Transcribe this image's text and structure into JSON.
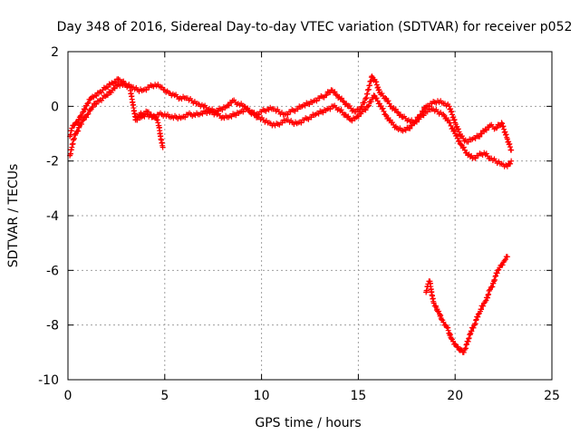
{
  "chart_data": {
    "type": "scatter",
    "title": "Day 348 of 2016, Sidereal Day-to-day VTEC variation (SDTVAR) for receiver p052",
    "xlabel": "GPS time / hours",
    "ylabel": "SDTVAR / TECUs",
    "xlim": [
      0,
      25
    ],
    "ylim": [
      -10,
      2
    ],
    "xticks": [
      0,
      5,
      10,
      15,
      20,
      25
    ],
    "yticks": [
      -10,
      -8,
      -6,
      -4,
      -2,
      0,
      2
    ],
    "grid": true,
    "marker": "+",
    "color": "#ff0000",
    "series": [
      {
        "name": "main-upper",
        "x": [
          0.1,
          0.2,
          0.3,
          0.4,
          0.5,
          0.6,
          0.8,
          1.0,
          1.2,
          1.4,
          1.6,
          1.8,
          2.0,
          2.2,
          2.4,
          2.6,
          2.8,
          3.0,
          3.3,
          3.6,
          3.9,
          4.2,
          4.5,
          4.8,
          5.0,
          5.2,
          5.5,
          5.8,
          6.1,
          6.4,
          6.7,
          7.0,
          7.3,
          7.6,
          7.9,
          8.2,
          8.5,
          8.8,
          9.1,
          9.4,
          9.7,
          10.0,
          10.3,
          10.6,
          10.9,
          11.2,
          11.5,
          11.8,
          12.1,
          12.4,
          12.7,
          13.0,
          13.3,
          13.6,
          13.9,
          14.2,
          14.5,
          14.8,
          15.1,
          15.4,
          15.7,
          15.9,
          16.1,
          16.4,
          16.7,
          17.0,
          17.3,
          17.6,
          17.9,
          18.2,
          18.5,
          18.8,
          19.1,
          19.4,
          19.7,
          20.0,
          20.3,
          20.6,
          20.9,
          21.2,
          21.5,
          21.8,
          22.1,
          22.4,
          22.7,
          22.9
        ],
        "y": [
          -1.1,
          -0.8,
          -0.7,
          -0.6,
          -0.6,
          -0.4,
          -0.2,
          0.1,
          0.3,
          0.4,
          0.5,
          0.6,
          0.7,
          0.8,
          0.9,
          1.0,
          0.9,
          0.8,
          0.7,
          0.6,
          0.6,
          0.7,
          0.8,
          0.7,
          0.6,
          0.5,
          0.4,
          0.3,
          0.3,
          0.2,
          0.1,
          0.0,
          -0.1,
          -0.2,
          -0.1,
          0.0,
          0.2,
          0.1,
          0.0,
          -0.2,
          -0.3,
          -0.2,
          -0.1,
          -0.1,
          -0.2,
          -0.3,
          -0.2,
          -0.1,
          0.0,
          0.1,
          0.2,
          0.3,
          0.4,
          0.6,
          0.4,
          0.2,
          0.0,
          -0.2,
          -0.1,
          0.3,
          1.1,
          0.9,
          0.5,
          0.3,
          0.0,
          -0.2,
          -0.4,
          -0.5,
          -0.6,
          -0.3,
          0.0,
          0.1,
          0.2,
          0.1,
          0.0,
          -0.6,
          -1.1,
          -1.3,
          -1.2,
          -1.1,
          -0.9,
          -0.7,
          -0.8,
          -0.6,
          -1.2,
          -1.6
        ]
      },
      {
        "name": "main-lower",
        "x": [
          0.1,
          0.2,
          0.3,
          0.4,
          0.5,
          0.6,
          0.8,
          1.0,
          1.2,
          1.4,
          1.6,
          1.8,
          2.0,
          2.3,
          2.6,
          2.9,
          3.2,
          3.5,
          3.8,
          4.1,
          4.4,
          4.7,
          5.0,
          5.3,
          5.6,
          5.9,
          6.2,
          6.5,
          6.8,
          7.1,
          7.4,
          7.7,
          8.0,
          8.3,
          8.6,
          8.9,
          9.2,
          9.5,
          9.8,
          10.1,
          10.4,
          10.7,
          11.0,
          11.3,
          11.6,
          11.9,
          12.2,
          12.5,
          12.8,
          13.1,
          13.4,
          13.7,
          14.0,
          14.3,
          14.6,
          14.9,
          15.2,
          15.5,
          15.8,
          16.1,
          16.4,
          16.7,
          17.0,
          17.3,
          17.6,
          17.9,
          18.2,
          18.5,
          18.8,
          19.1,
          19.4,
          19.7,
          20.0,
          20.3,
          20.6,
          20.9,
          21.2,
          21.5,
          21.8,
          22.1,
          22.4,
          22.7,
          22.9
        ],
        "y": [
          -1.8,
          -1.5,
          -1.2,
          -1.0,
          -0.9,
          -0.7,
          -0.5,
          -0.3,
          -0.1,
          0.1,
          0.2,
          0.3,
          0.4,
          0.6,
          0.8,
          0.8,
          0.7,
          -0.5,
          -0.4,
          -0.3,
          -0.4,
          -0.3,
          -0.3,
          -0.4,
          -0.4,
          -0.4,
          -0.3,
          -0.3,
          -0.3,
          -0.2,
          -0.2,
          -0.3,
          -0.4,
          -0.4,
          -0.3,
          -0.2,
          -0.1,
          -0.2,
          -0.4,
          -0.5,
          -0.6,
          -0.7,
          -0.6,
          -0.5,
          -0.6,
          -0.6,
          -0.5,
          -0.4,
          -0.3,
          -0.2,
          -0.1,
          0.0,
          -0.1,
          -0.3,
          -0.5,
          -0.4,
          -0.2,
          0.0,
          0.4,
          0.1,
          -0.3,
          -0.6,
          -0.8,
          -0.9,
          -0.8,
          -0.6,
          -0.4,
          -0.2,
          -0.1,
          -0.2,
          -0.3,
          -0.6,
          -1.0,
          -1.4,
          -1.7,
          -1.9,
          -1.8,
          -1.7,
          -1.9,
          -2.0,
          -2.1,
          -2.2,
          -2.0
        ]
      },
      {
        "name": "branch-x3.5",
        "x": [
          3.5,
          3.7,
          3.9,
          4.1,
          4.3,
          4.5,
          4.6,
          4.7,
          4.8,
          4.9
        ],
        "y": [
          -0.4,
          -0.3,
          -0.3,
          -0.2,
          -0.3,
          -0.4,
          -0.5,
          -0.7,
          -1.2,
          -1.5
        ]
      },
      {
        "name": "lower-v",
        "x": [
          18.5,
          18.6,
          18.7,
          18.8,
          18.9,
          19.0,
          19.1,
          19.2,
          19.3,
          19.4,
          19.5,
          19.6,
          19.7,
          19.8,
          19.9,
          20.0,
          20.1,
          20.2,
          20.3,
          20.4,
          20.5,
          20.6,
          20.7,
          20.8,
          20.9,
          21.0,
          21.1,
          21.2,
          21.3,
          21.4,
          21.5,
          21.6,
          21.7,
          21.8,
          21.9,
          22.0,
          22.1,
          22.2,
          22.3,
          22.4,
          22.5,
          22.6,
          22.7
        ],
        "y": [
          -6.8,
          -6.5,
          -6.4,
          -6.9,
          -7.2,
          -7.3,
          -7.5,
          -7.6,
          -7.8,
          -7.9,
          -8.0,
          -8.1,
          -8.3,
          -8.5,
          -8.6,
          -8.7,
          -8.8,
          -8.9,
          -8.9,
          -9.0,
          -8.9,
          -8.7,
          -8.5,
          -8.3,
          -8.1,
          -8.0,
          -7.8,
          -7.6,
          -7.5,
          -7.3,
          -7.2,
          -7.1,
          -6.9,
          -6.7,
          -6.6,
          -6.4,
          -6.2,
          -6.0,
          -5.9,
          -5.8,
          -5.7,
          -5.6,
          -5.5
        ]
      }
    ]
  }
}
